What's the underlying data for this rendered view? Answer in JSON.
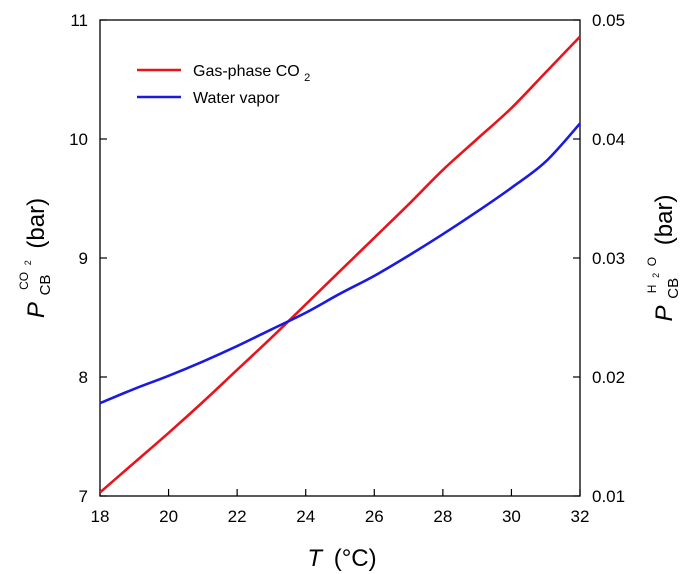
{
  "chart_data": {
    "type": "line",
    "x_axis": {
      "label_symbol": "T",
      "label_unit": "(°C)",
      "range": [
        18,
        32
      ],
      "ticks": [
        18,
        20,
        22,
        24,
        26,
        28,
        30,
        32
      ]
    },
    "y_axis_left": {
      "label_symbol": "P",
      "label_subscript": "CB",
      "label_superscript": "CO",
      "label_superscript_sub": "2",
      "label_unit": "(bar)",
      "range": [
        7,
        11
      ],
      "ticks": [
        7,
        8,
        9,
        10,
        11
      ]
    },
    "y_axis_right": {
      "label_symbol": "P",
      "label_subscript": "CB",
      "label_superscript": "H",
      "label_superscript_sub": "2",
      "label_superscript_tail": "O",
      "label_unit": "(bar)",
      "range": [
        0.01,
        0.05
      ],
      "ticks": [
        "0.01",
        "0.02",
        "0.03",
        "0.04",
        "0.05"
      ]
    },
    "legend": {
      "position": "top-left",
      "items": [
        {
          "series": 0,
          "label": "Gas-phase CO",
          "label_sub": "2"
        },
        {
          "series": 1,
          "label": "Water vapor",
          "label_sub": ""
        }
      ]
    },
    "grid": false,
    "series": [
      {
        "name": "Gas-phase CO2",
        "axis": "left",
        "color": "#e8141c",
        "x": [
          18,
          19,
          20,
          21,
          22,
          23,
          24,
          25,
          26,
          27,
          28,
          29,
          30,
          31,
          32
        ],
        "y": [
          7.03,
          7.28,
          7.53,
          7.79,
          8.06,
          8.33,
          8.61,
          8.89,
          9.17,
          9.45,
          9.74,
          10.0,
          10.26,
          10.56,
          10.86
        ]
      },
      {
        "name": "Water vapor",
        "axis": "right",
        "color": "#1a1ae0",
        "x": [
          18,
          19,
          20,
          21,
          22,
          23,
          24,
          25,
          26,
          27,
          28,
          29,
          30,
          31,
          32
        ],
        "y": [
          0.0178,
          0.019,
          0.0201,
          0.0213,
          0.0226,
          0.024,
          0.0254,
          0.027,
          0.0285,
          0.0302,
          0.032,
          0.0339,
          0.0359,
          0.0381,
          0.0413
        ]
      }
    ]
  }
}
